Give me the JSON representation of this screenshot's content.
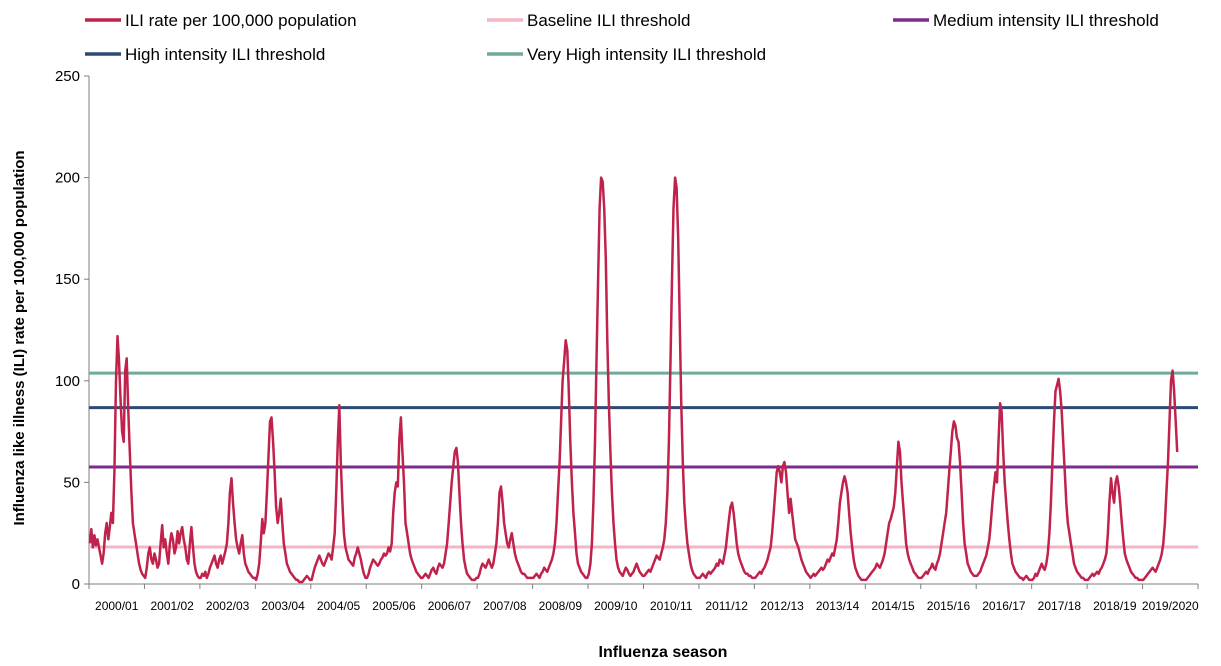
{
  "chart_data": {
    "type": "line",
    "title": "",
    "xlabel": "Influenza season",
    "ylabel": "Influenza like illness (ILI) rate per 100,000 population",
    "ylim": [
      0,
      250
    ],
    "yticks": [
      0,
      50,
      100,
      150,
      200,
      250
    ],
    "grid": false,
    "legend_position": "top",
    "categories": [
      "2000/01",
      "2001/02",
      "2002/03",
      "2003/04",
      "2004/05",
      "2005/06",
      "2006/07",
      "2007/08",
      "2008/09",
      "2009/10",
      "2010/11",
      "2011/12",
      "2012/13",
      "2013/14",
      "2014/15",
      "2015/16",
      "2016/17",
      "2017/18",
      "2018/19",
      "2019/2020"
    ],
    "series": [
      {
        "name": "ILI rate per 100,000 population",
        "color": "#c0224b",
        "seasons": [
          {
            "season": "2000/01",
            "values": [
              20,
              27,
              18,
              24,
              19,
              22,
              18,
              14,
              10,
              15,
              25,
              30,
              22,
              28,
              35,
              30,
              55,
              100,
              122,
              110,
              90,
              75,
              70,
              105,
              111,
              85,
              65,
              45,
              30,
              25,
              20,
              15,
              10,
              7,
              5,
              4
            ]
          },
          {
            "season": "2001/02",
            "values": [
              3,
              8,
              15,
              18,
              12,
              10,
              15,
              12,
              8,
              10,
              20,
              29,
              18,
              22,
              15,
              10,
              20,
              25,
              22,
              15,
              18,
              26,
              20,
              25,
              28,
              22,
              18,
              12,
              10,
              20,
              28,
              18,
              10,
              6,
              4,
              3
            ]
          },
          {
            "season": "2002/03",
            "values": [
              3,
              5,
              4,
              6,
              3,
              5,
              8,
              10,
              12,
              14,
              10,
              8,
              12,
              14,
              10,
              13,
              16,
              20,
              30,
              45,
              52,
              40,
              30,
              22,
              18,
              15,
              20,
              24,
              15,
              10,
              8,
              6,
              5,
              4,
              3,
              3
            ]
          },
          {
            "season": "2003/04",
            "values": [
              2,
              5,
              10,
              20,
              32,
              25,
              30,
              45,
              62,
              80,
              82,
              70,
              55,
              38,
              30,
              35,
              42,
              30,
              20,
              15,
              10,
              8,
              6,
              5,
              4,
              3,
              2,
              2,
              1,
              1,
              1,
              2,
              3,
              4,
              3,
              2
            ]
          },
          {
            "season": "2004/05",
            "values": [
              2,
              5,
              8,
              10,
              12,
              14,
              12,
              10,
              9,
              11,
              13,
              15,
              14,
              12,
              18,
              25,
              45,
              70,
              88,
              60,
              40,
              25,
              18,
              15,
              12,
              11,
              10,
              9,
              13,
              15,
              18,
              15,
              12,
              8,
              5,
              3
            ]
          },
          {
            "season": "2005/06",
            "values": [
              3,
              5,
              8,
              10,
              12,
              11,
              10,
              9,
              10,
              12,
              13,
              15,
              14,
              15,
              18,
              16,
              20,
              35,
              45,
              50,
              48,
              72,
              82,
              65,
              50,
              30,
              25,
              20,
              15,
              12,
              10,
              8,
              6,
              5,
              4,
              3
            ]
          },
          {
            "season": "2006/07",
            "values": [
              3,
              4,
              5,
              4,
              3,
              5,
              7,
              8,
              6,
              5,
              8,
              10,
              9,
              8,
              10,
              15,
              20,
              30,
              40,
              50,
              58,
              65,
              67,
              60,
              45,
              30,
              20,
              12,
              8,
              5,
              4,
              3,
              2,
              2,
              2,
              3
            ]
          },
          {
            "season": "2007/08",
            "values": [
              3,
              5,
              8,
              10,
              9,
              8,
              10,
              12,
              10,
              8,
              10,
              15,
              20,
              30,
              45,
              48,
              40,
              30,
              25,
              20,
              18,
              22,
              25,
              20,
              15,
              12,
              10,
              8,
              6,
              5,
              5,
              4,
              3,
              3,
              3,
              3
            ]
          },
          {
            "season": "2008/09",
            "values": [
              3,
              4,
              5,
              4,
              3,
              5,
              6,
              8,
              7,
              6,
              8,
              10,
              12,
              15,
              20,
              30,
              45,
              60,
              80,
              100,
              110,
              120,
              115,
              95,
              70,
              50,
              35,
              25,
              15,
              10,
              8,
              6,
              5,
              4,
              3,
              3
            ]
          },
          {
            "season": "2009/10",
            "values": [
              5,
              10,
              20,
              40,
              70,
              110,
              150,
              185,
              200,
              198,
              185,
              160,
              120,
              90,
              65,
              45,
              30,
              20,
              12,
              8,
              6,
              5,
              4,
              6,
              8,
              7,
              5,
              4,
              5,
              6,
              8,
              10,
              8,
              6,
              5,
              4
            ]
          },
          {
            "season": "2010/11",
            "values": [
              4,
              5,
              6,
              7,
              6,
              8,
              10,
              12,
              14,
              13,
              12,
              15,
              18,
              22,
              30,
              45,
              70,
              110,
              150,
              185,
              200,
              195,
              170,
              130,
              90,
              60,
              40,
              28,
              20,
              15,
              10,
              7,
              5,
              4,
              3,
              3
            ]
          },
          {
            "season": "2011/12",
            "values": [
              3,
              4,
              5,
              4,
              3,
              5,
              6,
              5,
              6,
              7,
              8,
              10,
              9,
              12,
              11,
              10,
              14,
              18,
              25,
              32,
              38,
              40,
              35,
              28,
              20,
              15,
              12,
              10,
              8,
              6,
              5,
              5,
              4,
              4,
              3,
              3
            ]
          },
          {
            "season": "2012/13",
            "values": [
              3,
              4,
              5,
              6,
              5,
              7,
              8,
              10,
              12,
              15,
              18,
              25,
              35,
              45,
              55,
              58,
              55,
              50,
              58,
              60,
              55,
              45,
              35,
              42,
              35,
              28,
              22,
              20,
              18,
              15,
              12,
              10,
              8,
              6,
              5,
              4
            ]
          },
          {
            "season": "2013/14",
            "values": [
              3,
              4,
              5,
              4,
              5,
              6,
              7,
              8,
              7,
              8,
              10,
              12,
              11,
              13,
              15,
              14,
              18,
              22,
              30,
              40,
              45,
              50,
              53,
              50,
              45,
              35,
              25,
              18,
              12,
              8,
              6,
              4,
              3,
              2,
              2,
              2
            ]
          },
          {
            "season": "2014/15",
            "values": [
              2,
              3,
              4,
              5,
              6,
              7,
              8,
              10,
              9,
              8,
              10,
              12,
              15,
              20,
              25,
              30,
              32,
              35,
              38,
              45,
              58,
              70,
              65,
              50,
              40,
              30,
              20,
              15,
              12,
              10,
              8,
              6,
              5,
              4,
              3,
              3
            ]
          },
          {
            "season": "2015/16",
            "values": [
              3,
              4,
              5,
              6,
              5,
              7,
              8,
              10,
              8,
              7,
              10,
              12,
              15,
              20,
              25,
              30,
              35,
              45,
              55,
              65,
              75,
              80,
              78,
              72,
              70,
              60,
              45,
              30,
              20,
              15,
              10,
              8,
              6,
              5,
              4,
              4
            ]
          },
          {
            "season": "2016/17",
            "values": [
              4,
              5,
              6,
              8,
              10,
              12,
              14,
              18,
              22,
              30,
              40,
              48,
              55,
              50,
              70,
              89,
              85,
              65,
              50,
              40,
              30,
              22,
              15,
              10,
              8,
              6,
              5,
              4,
              3,
              3,
              2,
              3,
              4,
              3,
              2,
              2
            ]
          },
          {
            "season": "2017/18",
            "values": [
              2,
              3,
              5,
              4,
              6,
              8,
              10,
              8,
              7,
              10,
              15,
              25,
              40,
              60,
              80,
              95,
              98,
              101,
              95,
              85,
              70,
              55,
              40,
              30,
              25,
              20,
              15,
              10,
              8,
              6,
              5,
              4,
              3,
              3,
              2,
              2
            ]
          },
          {
            "season": "2018/19",
            "values": [
              2,
              3,
              4,
              5,
              4,
              5,
              6,
              5,
              7,
              8,
              10,
              12,
              15,
              25,
              40,
              52,
              45,
              40,
              50,
              53,
              48,
              40,
              30,
              22,
              15,
              12,
              10,
              8,
              6,
              5,
              4,
              3,
              3,
              2,
              2,
              2
            ]
          },
          {
            "season": "2019/2020",
            "values": [
              2,
              3,
              4,
              5,
              6,
              7,
              8,
              7,
              6,
              8,
              10,
              12,
              15,
              20,
              30,
              45,
              60,
              80,
              100,
              105,
              95,
              80,
              65
            ]
          }
        ]
      },
      {
        "name": "Baseline ILI threshold",
        "color": "#f4b6c4",
        "value": 18.2
      },
      {
        "name": "Medium intensity ILI threshold",
        "color": "#7b2d8e",
        "value": 57.6
      },
      {
        "name": "High intensity ILI threshold",
        "color": "#2c4a72",
        "value": 86.8
      },
      {
        "name": "Very High intensity ILI threshold",
        "color": "#6fab9c",
        "value": 103.8
      }
    ]
  }
}
